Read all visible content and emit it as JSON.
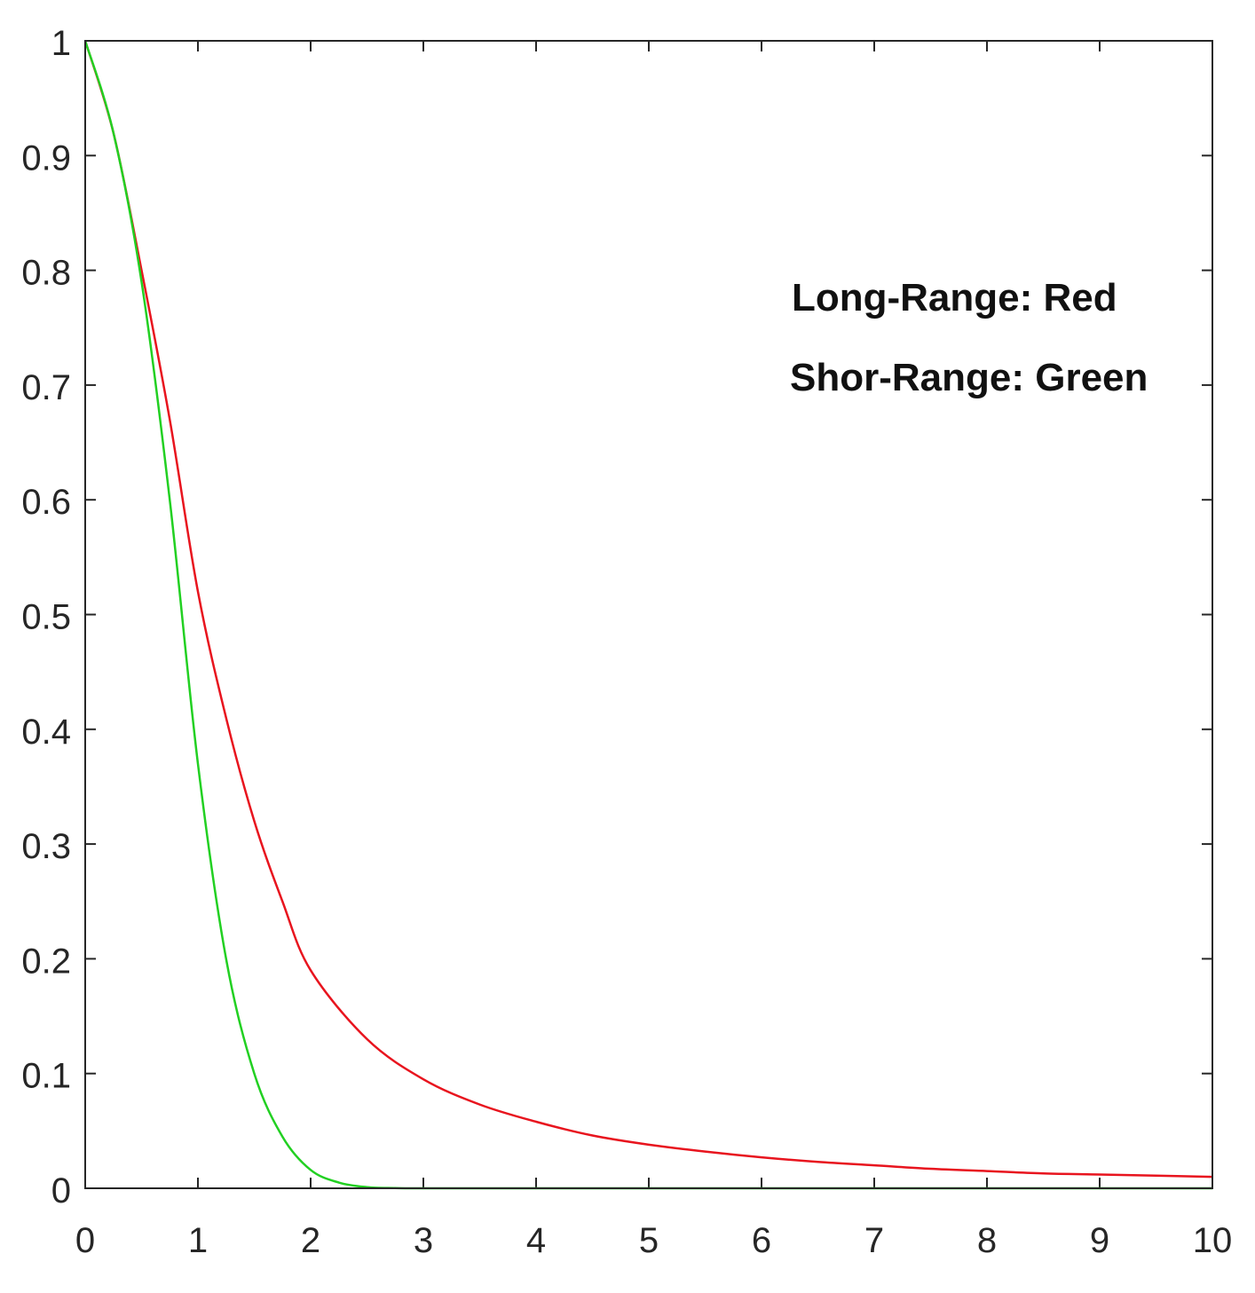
{
  "chart_data": {
    "type": "line",
    "title": "",
    "xlabel": "",
    "ylabel": "",
    "xlim": [
      0,
      10
    ],
    "ylim": [
      0,
      1
    ],
    "x_ticks": [
      "0",
      "1",
      "2",
      "3",
      "4",
      "5",
      "6",
      "7",
      "8",
      "9",
      "10"
    ],
    "y_ticks": [
      "0",
      "0.1",
      "0.2",
      "0.3",
      "0.4",
      "0.5",
      "0.6",
      "0.7",
      "0.8",
      "0.9",
      "1"
    ],
    "grid": false,
    "box": true,
    "annotations": [
      "Long-Range: Red",
      "Shor-Range: Green"
    ],
    "series": [
      {
        "color": "#e8141e",
        "x": [
          0,
          0.25,
          0.5,
          0.75,
          1,
          1.25,
          1.5,
          1.75,
          2,
          2.5,
          3,
          3.5,
          4,
          4.5,
          5,
          5.5,
          6,
          6.5,
          7,
          7.5,
          8,
          8.5,
          9,
          9.5,
          10
        ],
        "y": [
          1,
          0.92,
          0.8,
          0.67,
          0.52,
          0.41,
          0.32,
          0.25,
          0.19,
          0.13,
          0.095,
          0.073,
          0.058,
          0.046,
          0.038,
          0.032,
          0.027,
          0.023,
          0.02,
          0.017,
          0.015,
          0.013,
          0.012,
          0.011,
          0.01
        ]
      },
      {
        "color": "#22d022",
        "x": [
          0,
          0.25,
          0.5,
          0.75,
          1,
          1.25,
          1.5,
          1.75,
          2,
          2.25,
          2.5,
          2.75,
          3,
          4,
          5,
          6,
          7,
          8,
          9,
          10
        ],
        "y": [
          1,
          0.92,
          0.79,
          0.6,
          0.37,
          0.2,
          0.1,
          0.045,
          0.016,
          0.005,
          0.001,
          0.0002,
          0,
          0,
          0,
          0,
          0,
          0,
          0,
          0
        ]
      }
    ]
  }
}
